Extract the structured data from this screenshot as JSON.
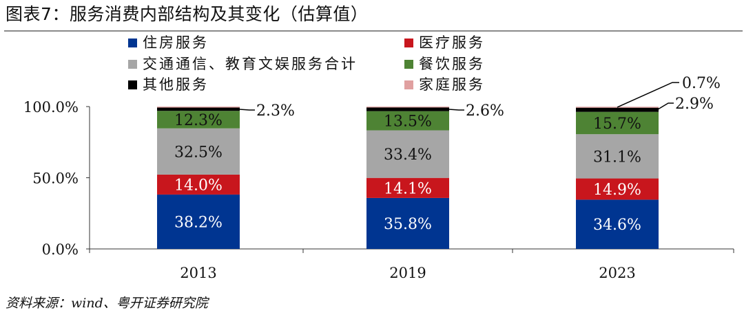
{
  "title": "图表7：服务消费内部结构及其变化（估算值）",
  "source": "资料来源：wind、粤开证券研究院",
  "chart_data": {
    "type": "bar",
    "stacked": true,
    "categories": [
      "2013",
      "2019",
      "2023"
    ],
    "ylim": [
      0,
      100
    ],
    "yticks": [
      "0.0%",
      "50.0%",
      "100.0%"
    ],
    "ytick_values": [
      0,
      50,
      100
    ],
    "grid": false,
    "legend_position": "top",
    "series": [
      {
        "name": "住房服务",
        "color": "#003591",
        "values": [
          38.2,
          35.8,
          34.6
        ],
        "labels": [
          "38.2%",
          "35.8%",
          "34.6%"
        ],
        "label_color": "#ffffff"
      },
      {
        "name": "医疗服务",
        "color": "#c8161d",
        "values": [
          14.0,
          14.1,
          14.9
        ],
        "labels": [
          "14.0%",
          "14.1%",
          "14.9%"
        ],
        "label_color": "#ffffff"
      },
      {
        "name": "交通通信、教育文娱服务合计",
        "color": "#a6a6a6",
        "values": [
          32.5,
          33.4,
          31.1
        ],
        "labels": [
          "32.5%",
          "33.4%",
          "31.1%"
        ],
        "label_color": "#111111"
      },
      {
        "name": "餐饮服务",
        "color": "#4e8334",
        "values": [
          12.3,
          13.5,
          15.7
        ],
        "labels": [
          "12.3%",
          "13.5%",
          "15.7%"
        ],
        "label_color": "#111111"
      },
      {
        "name": "其他服务",
        "color": "#000000",
        "values": [
          2.3,
          2.6,
          2.9
        ],
        "labels": [
          "2.3%",
          "2.6%",
          "2.9%"
        ],
        "label_color": "#111111"
      },
      {
        "name": "家庭服务",
        "color": "#e0a0a0",
        "values": [
          0.7,
          0.6,
          0.7
        ],
        "labels": [
          "",
          "",
          "0.7%"
        ],
        "label_color": "#111111"
      }
    ]
  }
}
